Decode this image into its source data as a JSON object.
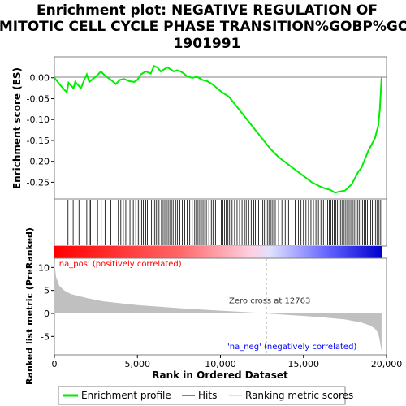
{
  "chart_data": {
    "type": "line",
    "title_lines": [
      "Enrichment plot: NEGATIVE REGULATION OF",
      "MITOTIC CELL CYCLE PHASE TRANSITION%GOBP%GO:",
      "1901991"
    ],
    "top_panel": {
      "ylabel": "Enrichment score (ES)",
      "yticks": [
        "0.00",
        "-0.05",
        "-0.10",
        "-0.15",
        "-0.20",
        "-0.25"
      ],
      "ytick_values": [
        0.0,
        -0.05,
        -0.1,
        -0.15,
        -0.2,
        -0.25
      ],
      "ylim": [
        -0.29,
        0.05
      ],
      "xlim": [
        0,
        20000
      ],
      "series": [
        {
          "name": "Enrichment profile",
          "color": "#00ee00",
          "x": [
            0,
            400,
            750,
            850,
            1150,
            1250,
            1600,
            1800,
            1950,
            2100,
            2500,
            2800,
            3050,
            3400,
            3700,
            3950,
            4200,
            4500,
            4800,
            5000,
            5200,
            5500,
            5800,
            6000,
            6200,
            6400,
            6600,
            6800,
            7000,
            7200,
            7400,
            7600,
            7800,
            8000,
            8300,
            8600,
            8900,
            9200,
            9500,
            9800,
            10100,
            10500,
            11000,
            11500,
            12000,
            12500,
            13000,
            13500,
            14000,
            14500,
            15000,
            15500,
            16000,
            16300,
            16600,
            16900,
            17200,
            17500,
            17700,
            17900,
            18100,
            18300,
            18500,
            18700,
            18900,
            19100,
            19300,
            19400,
            19500,
            19550,
            19600,
            19650,
            19700
          ],
          "y": [
            0.0,
            -0.02,
            -0.035,
            -0.012,
            -0.025,
            -0.01,
            -0.025,
            -0.005,
            0.008,
            -0.01,
            0.003,
            0.015,
            0.005,
            -0.005,
            -0.015,
            -0.005,
            -0.003,
            -0.008,
            -0.01,
            -0.005,
            0.008,
            0.015,
            0.01,
            0.028,
            0.025,
            0.015,
            0.02,
            0.025,
            0.02,
            0.015,
            0.018,
            0.015,
            0.01,
            0.003,
            0.0,
            0.002,
            -0.005,
            -0.008,
            -0.015,
            -0.025,
            -0.035,
            -0.045,
            -0.07,
            -0.095,
            -0.12,
            -0.145,
            -0.17,
            -0.19,
            -0.205,
            -0.22,
            -0.235,
            -0.25,
            -0.26,
            -0.265,
            -0.268,
            -0.275,
            -0.272,
            -0.27,
            -0.262,
            -0.255,
            -0.24,
            -0.225,
            -0.215,
            -0.195,
            -0.175,
            -0.16,
            -0.145,
            -0.13,
            -0.115,
            -0.095,
            -0.075,
            -0.04,
            0.0
          ]
        }
      ]
    },
    "hits_panel": {
      "hit_positions": [
        820,
        1130,
        1480,
        1780,
        1950,
        2100,
        2180,
        2600,
        2820,
        3050,
        3400,
        3850,
        4000,
        4150,
        4300,
        4550,
        4750,
        4900,
        5050,
        5150,
        5250,
        5350,
        5500,
        5600,
        5700,
        5850,
        5950,
        6050,
        6150,
        6300,
        6450,
        6550,
        6650,
        6750,
        6850,
        6950,
        7050,
        7150,
        7300,
        7400,
        7550,
        7700,
        7850,
        8000,
        8150,
        8300,
        8450,
        8550,
        8650,
        8750,
        8850,
        8950,
        9050,
        9150,
        9300,
        9450,
        9550,
        9700,
        9850,
        10050,
        10150,
        10250,
        10350,
        10450,
        10550,
        10700,
        10850,
        11000,
        11150,
        11300,
        11450,
        11550,
        11700,
        11850,
        12000,
        12100,
        12200,
        12300,
        12450,
        12550,
        12650,
        12750,
        12850,
        12950,
        13050,
        13150,
        13300,
        13500,
        13700,
        13900,
        14100,
        14300,
        14500,
        14700,
        14850,
        15000,
        15150,
        15300,
        15450,
        15600,
        15750,
        15900,
        16050,
        16200,
        16350,
        16450,
        16550,
        16650,
        16750,
        16850,
        16950,
        17050,
        17150,
        17250,
        17350,
        17450,
        17550,
        17650,
        17750,
        17850,
        17950,
        18050,
        18150,
        18250,
        18350,
        18450,
        18550,
        18650,
        18750,
        18850,
        18950,
        19050,
        19150,
        19250,
        19350,
        19450,
        19550,
        19650
      ]
    },
    "ranking_panel": {
      "ylabel": "Ranked list metric (PreRanked)",
      "yticks": [
        "10",
        "5",
        "0",
        "-5"
      ],
      "ytick_values": [
        10,
        5,
        0,
        -5
      ],
      "ylim": [
        -9,
        12
      ],
      "x": [
        0,
        100,
        300,
        600,
        1000,
        2000,
        3000,
        5000,
        8000,
        10000,
        12000,
        12763,
        14000,
        16000,
        17500,
        18500,
        19000,
        19300,
        19500,
        19600,
        19700
      ],
      "y": [
        11,
        8.0,
        6.0,
        5.0,
        4.2,
        3.3,
        2.6,
        1.8,
        1.0,
        0.6,
        0.2,
        0.0,
        -0.3,
        -0.8,
        -1.3,
        -2.0,
        -2.6,
        -3.3,
        -4.3,
        -6.0,
        -8.2
      ],
      "zero_cross_label": "Zero cross at 12763",
      "zero_cross": 12763,
      "pos_label": "'na_pos' (positively correlated)",
      "neg_label": "'na_neg' (negatively correlated)"
    },
    "xlabel": "Rank in Ordered Dataset",
    "xticks": [
      "0",
      "5,000",
      "10,000",
      "15,000",
      "20,000"
    ],
    "xtick_values": [
      0,
      5000,
      10000,
      15000,
      20000
    ],
    "legend": {
      "placement": "bottom",
      "items": [
        "Enrichment profile",
        "Hits",
        "Ranking metric scores"
      ]
    },
    "colors": {
      "profile": "#00ee00",
      "pos_label": "#ff0000",
      "neg_label": "#0000ff",
      "metric_fill": "#c0c0c0",
      "zero_line": "#a0a0a0"
    }
  }
}
